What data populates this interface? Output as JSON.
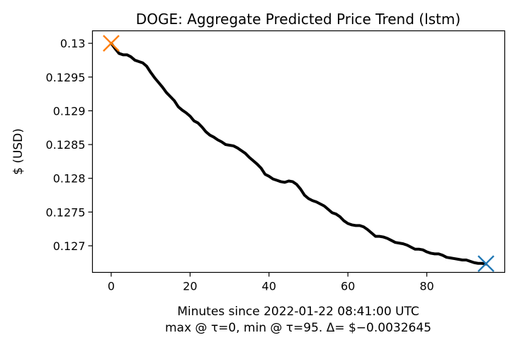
{
  "chart_data": {
    "type": "line",
    "title": "DOGE: Aggregate Predicted Price Trend (lstm)",
    "xlabel": "Minutes since 2022-01-22 08:41:00 UTC",
    "xlabel_line2": "max @ τ=0, min @ τ=95. Δ= $−0.0032645",
    "ylabel": "$ (USD)",
    "xlim": [
      -4.75,
      99.75
    ],
    "ylim": [
      0.126606,
      0.130185
    ],
    "x_ticks": [
      0,
      20,
      40,
      60,
      80
    ],
    "x_tick_labels": [
      "0",
      "20",
      "40",
      "60",
      "80"
    ],
    "y_ticks": [
      0.127,
      0.1275,
      0.128,
      0.1285,
      0.129,
      0.1295,
      0.13
    ],
    "y_tick_labels": [
      "0.127",
      "0.1275",
      "0.128",
      "0.1285",
      "0.129",
      "0.1295",
      "0.13"
    ],
    "grid": false,
    "series": [
      {
        "color": "#000000",
        "x": [
          0,
          1,
          2,
          3,
          4,
          5,
          6,
          7,
          8,
          9,
          10,
          11,
          12,
          13,
          14,
          15,
          16,
          17,
          18,
          19,
          20,
          21,
          22,
          23,
          24,
          25,
          26,
          27,
          28,
          29,
          30,
          31,
          32,
          33,
          34,
          35,
          36,
          37,
          38,
          39,
          40,
          41,
          42,
          43,
          44,
          45,
          46,
          47,
          48,
          49,
          50,
          51,
          52,
          53,
          54,
          55,
          56,
          57,
          58,
          59,
          60,
          61,
          62,
          63,
          64,
          65,
          66,
          67,
          68,
          69,
          70,
          71,
          72,
          73,
          74,
          75,
          76,
          77,
          78,
          79,
          80,
          81,
          82,
          83,
          84,
          85,
          86,
          87,
          88,
          89,
          90,
          91,
          92,
          93,
          94,
          95
        ],
        "values": [
          0.13,
          0.12992,
          0.12985,
          0.12983,
          0.12983,
          0.1298,
          0.12975,
          0.12973,
          0.12971,
          0.12966,
          0.12957,
          0.12949,
          0.12942,
          0.12935,
          0.12927,
          0.12921,
          0.12915,
          0.12906,
          0.12901,
          0.12897,
          0.12892,
          0.12885,
          0.12882,
          0.12876,
          0.12869,
          0.12864,
          0.12861,
          0.12857,
          0.12854,
          0.1285,
          0.12849,
          0.12848,
          0.12845,
          0.12841,
          0.12837,
          0.12831,
          0.12826,
          0.12821,
          0.12815,
          0.12806,
          0.12803,
          0.12799,
          0.12797,
          0.12795,
          0.12794,
          0.12796,
          0.12795,
          0.12791,
          0.12784,
          0.12775,
          0.1277,
          0.12767,
          0.12765,
          0.12762,
          0.12759,
          0.12754,
          0.12749,
          0.12747,
          0.12743,
          0.12737,
          0.12733,
          0.12731,
          0.1273,
          0.1273,
          0.12728,
          0.12724,
          0.12719,
          0.12714,
          0.12714,
          0.12713,
          0.12711,
          0.12708,
          0.12705,
          0.12704,
          0.12703,
          0.12701,
          0.12698,
          0.12695,
          0.12695,
          0.12694,
          0.12691,
          0.12689,
          0.12688,
          0.12688,
          0.12686,
          0.12683,
          0.12682,
          0.12681,
          0.1268,
          0.12679,
          0.12679,
          0.12677,
          0.12675,
          0.12674,
          0.12674,
          0.12673
        ]
      }
    ],
    "markers": [
      {
        "x": 0,
        "y": 0.13,
        "symbol": "x",
        "color": "#ff7f0e"
      },
      {
        "x": 95,
        "y": 0.1267355,
        "symbol": "x",
        "color": "#1f77b4"
      }
    ]
  }
}
